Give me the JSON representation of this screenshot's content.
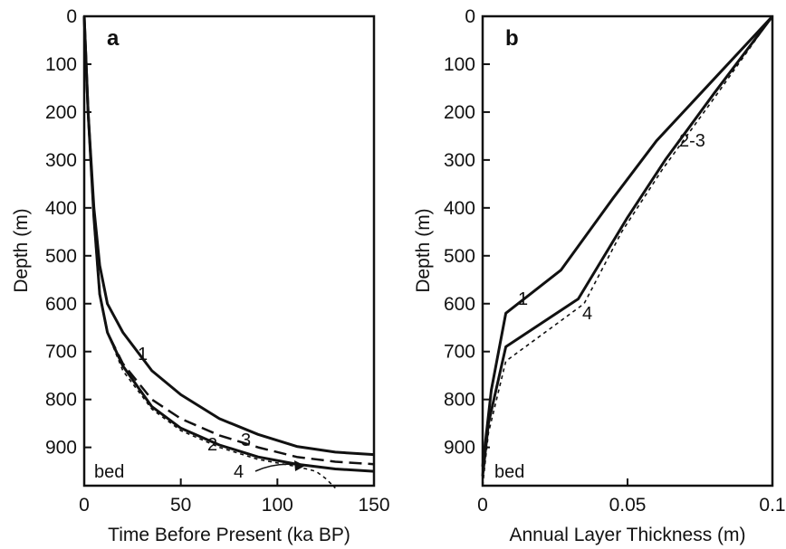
{
  "chart_data": [
    {
      "type": "line",
      "panel_label": "a",
      "xlabel": "Time Before Present (ka BP)",
      "ylabel": "Depth (m)",
      "xlim": [
        0,
        150
      ],
      "ylim": [
        0,
        980
      ],
      "y_inverted": true,
      "x_ticks": [
        "0",
        "50",
        "100",
        "150"
      ],
      "y_ticks": [
        "0",
        "100",
        "200",
        "300",
        "400",
        "500",
        "600",
        "700",
        "800",
        "900"
      ],
      "bottom_label": "bed",
      "series": [
        {
          "name": "1",
          "style": "solid",
          "x": [
            0,
            2,
            5,
            8,
            12,
            20,
            35,
            50,
            70,
            90,
            110,
            130,
            150
          ],
          "y": [
            0,
            200,
            400,
            520,
            600,
            660,
            740,
            790,
            840,
            873,
            898,
            910,
            915
          ]
        },
        {
          "name": "2",
          "style": "solid",
          "x": [
            0,
            2,
            5,
            8,
            12,
            20,
            35,
            50,
            70,
            90,
            110,
            130,
            150
          ],
          "y": [
            0,
            200,
            420,
            580,
            660,
            730,
            815,
            860,
            895,
            920,
            935,
            945,
            950
          ]
        },
        {
          "name": "3",
          "style": "dashed",
          "x": [
            0,
            2,
            5,
            8,
            12,
            20,
            35,
            50,
            70,
            90,
            110,
            130,
            150
          ],
          "y": [
            0,
            200,
            420,
            580,
            660,
            725,
            800,
            840,
            875,
            900,
            920,
            930,
            935
          ]
        },
        {
          "name": "4",
          "style": "dotted",
          "x": [
            0,
            2,
            5,
            8,
            12,
            20,
            35,
            50,
            70,
            90,
            110,
            120,
            125,
            130
          ],
          "y": [
            0,
            200,
            420,
            580,
            660,
            740,
            820,
            865,
            900,
            925,
            940,
            950,
            965,
            985
          ]
        }
      ],
      "annotations": [
        "1",
        "2",
        "3",
        "4"
      ]
    },
    {
      "type": "line",
      "panel_label": "b",
      "xlabel": "Annual Layer Thickness (m)",
      "ylabel": "Depth (m)",
      "xlim": [
        0,
        0.1
      ],
      "ylim": [
        0,
        980
      ],
      "y_inverted": true,
      "x_ticks": [
        "0",
        "0.05",
        "0.1"
      ],
      "y_ticks": [
        "0",
        "100",
        "200",
        "300",
        "400",
        "500",
        "600",
        "700",
        "800",
        "900"
      ],
      "bottom_label": "bed",
      "series": [
        {
          "name": "1",
          "style": "solid",
          "x": [
            0.1,
            0.08,
            0.06,
            0.045,
            0.027,
            0.008,
            0.003,
            0.0
          ],
          "y": [
            0,
            130,
            260,
            380,
            530,
            620,
            780,
            940
          ]
        },
        {
          "name": "2-3",
          "style": "solid",
          "x": [
            0.1,
            0.08,
            0.063,
            0.05,
            0.033,
            0.008,
            0.002,
            0.0
          ],
          "y": [
            0,
            160,
            300,
            420,
            590,
            690,
            850,
            960
          ]
        },
        {
          "name": "4",
          "style": "dotted",
          "x": [
            0.1,
            0.08,
            0.062,
            0.048,
            0.035,
            0.008,
            0.002,
            0.0
          ],
          "y": [
            0,
            170,
            320,
            450,
            600,
            720,
            870,
            980
          ]
        }
      ],
      "annotations": [
        "1",
        "2-3",
        "4"
      ]
    }
  ]
}
